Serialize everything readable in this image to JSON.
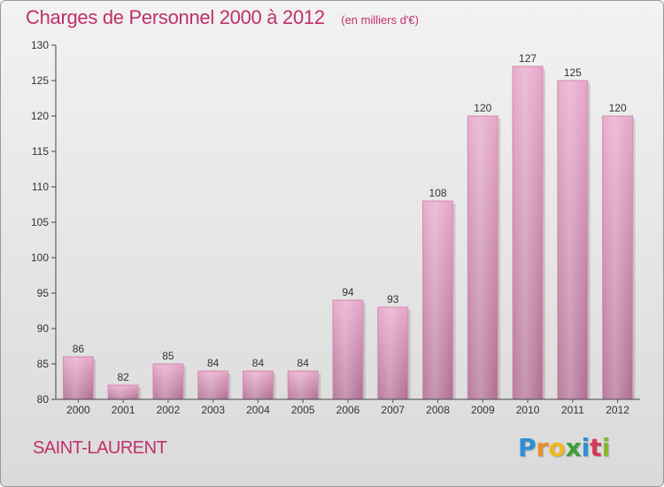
{
  "chart_data": {
    "type": "bar",
    "title": "Charges de Personnel 2000 à 2012",
    "subtitle": "(en milliers d'€)",
    "categories": [
      "2000",
      "2001",
      "2002",
      "2003",
      "2004",
      "2005",
      "2006",
      "2007",
      "2008",
      "2009",
      "2010",
      "2011",
      "2012"
    ],
    "values": [
      86,
      82,
      85,
      84,
      84,
      84,
      94,
      93,
      108,
      120,
      127,
      125,
      120
    ],
    "ylim": [
      80,
      130
    ],
    "yticks": [
      80,
      85,
      90,
      95,
      100,
      105,
      110,
      115,
      120,
      125,
      130
    ],
    "xlabel": "",
    "ylabel": "",
    "grid": false,
    "bar_color": "#d891b6",
    "title_color": "#c0306a"
  },
  "commune": "SAINT-LAURENT",
  "brand": {
    "name": "Proxiti",
    "letters": [
      {
        "ch": "P",
        "color": "#2f8fd6"
      },
      {
        "ch": "r",
        "color": "#e8902a"
      },
      {
        "ch": "o",
        "color": "#f0b81e"
      },
      {
        "ch": "x",
        "color": "#3f9f3a"
      },
      {
        "ch": "i",
        "color": "#2f8fd6"
      },
      {
        "ch": "t",
        "color": "#d63a5a"
      },
      {
        "ch": "i",
        "color": "#8ab82c"
      }
    ]
  }
}
